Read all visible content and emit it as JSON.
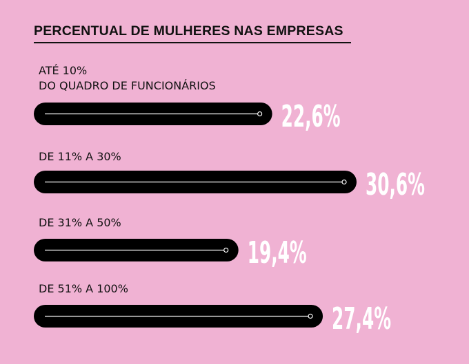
{
  "chart_data": {
    "type": "bar",
    "orientation": "horizontal",
    "title": "PERCENTUAL DE MULHERES NAS EMPRESAS",
    "categories": [
      "ATÉ 10%\nDO QUADRO DE FUNCIONÁRIOS",
      "DE 11% A 30%",
      "DE 31% A 50%",
      "DE 51% A 100%"
    ],
    "values": [
      22.6,
      30.6,
      19.4,
      27.4
    ],
    "value_labels": [
      "22,6%",
      "30,6%",
      "19,4%",
      "27,4%"
    ],
    "unit": "%",
    "xlim": [
      0,
      30.6
    ],
    "grid": false,
    "legend": "none",
    "colors": {
      "background": "#f0b2d3",
      "bar": "#000000",
      "line": "#ffffff",
      "value_text": "#ffffff",
      "text": "#111111"
    }
  }
}
